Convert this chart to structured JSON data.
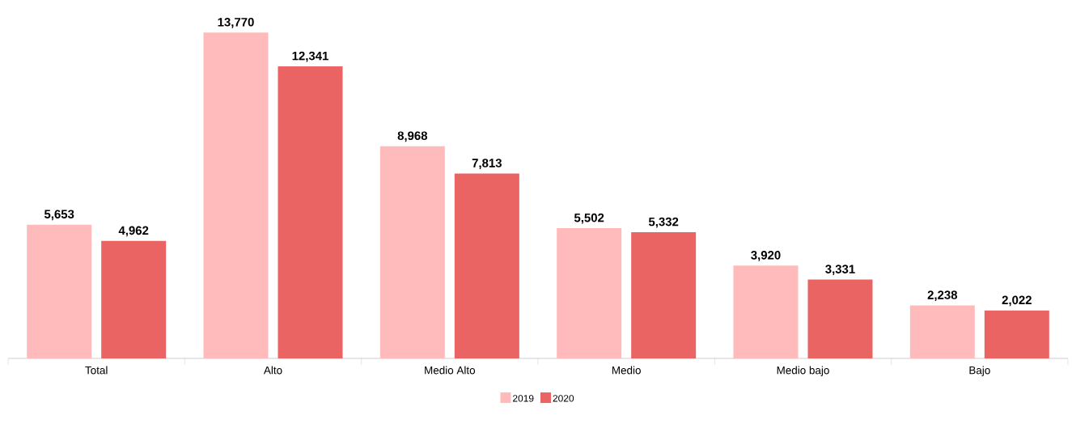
{
  "chart_data": {
    "type": "bar",
    "categories": [
      "Total",
      "Alto",
      "Medio Alto",
      "Medio",
      "Medio bajo",
      "Bajo"
    ],
    "series": [
      {
        "name": "2019",
        "color": "#ffbbbb",
        "values": [
          5653,
          13770,
          8968,
          5502,
          3920,
          2238
        ],
        "value_labels": [
          "5,653",
          "13,770",
          "8,968",
          "5,502",
          "3,920",
          "2,238"
        ]
      },
      {
        "name": "2020",
        "color": "#eb6464",
        "values": [
          4962,
          12341,
          7813,
          5332,
          3331,
          2022
        ],
        "value_labels": [
          "4,962",
          "12,341",
          "7,813",
          "5,332",
          "3,331",
          "2,022"
        ]
      }
    ],
    "legend": "bottom"
  }
}
